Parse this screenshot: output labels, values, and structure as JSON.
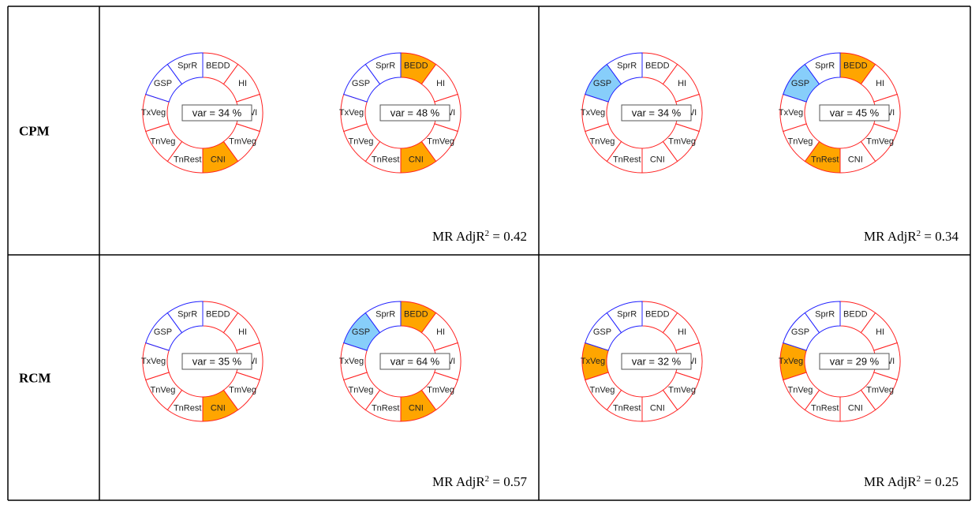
{
  "segments": [
    {
      "label": "BEDD",
      "stroke": "#ff2020"
    },
    {
      "label": "HI",
      "stroke": "#ff2020"
    },
    {
      "label": "WI",
      "stroke": "#ff2020"
    },
    {
      "label": "TmVeg",
      "stroke": "#ff2020"
    },
    {
      "label": "CNI",
      "stroke": "#ff2020"
    },
    {
      "label": "TnRest",
      "stroke": "#ff2020"
    },
    {
      "label": "TnVeg",
      "stroke": "#ff2020"
    },
    {
      "label": "TxVeg",
      "stroke": "#ff2020"
    },
    {
      "label": "GSP",
      "stroke": "#2020ff"
    },
    {
      "label": "SprR",
      "stroke": "#2020ff"
    }
  ],
  "rows": [
    {
      "label": "CPM",
      "cells": [
        {
          "diagrams": [
            {
              "var": "var = 34 %",
              "highlights": [
                {
                  "segment": "CNI",
                  "color": "#ffa500"
                }
              ]
            },
            {
              "var": "var = 48 %",
              "highlights": [
                {
                  "segment": "BEDD",
                  "color": "#ffa500"
                },
                {
                  "segment": "CNI",
                  "color": "#ffa500"
                }
              ]
            }
          ],
          "note": [
            "MR AdjR",
            "2",
            " = 0.42"
          ]
        },
        {
          "diagrams": [
            {
              "var": "var = 34 %",
              "highlights": [
                {
                  "segment": "GSP",
                  "color": "#87cefa"
                }
              ]
            },
            {
              "var": "var = 45 %",
              "highlights": [
                {
                  "segment": "GSP",
                  "color": "#87cefa"
                },
                {
                  "segment": "BEDD",
                  "color": "#ffa500"
                },
                {
                  "segment": "TnRest",
                  "color": "#ffa500"
                }
              ]
            }
          ],
          "note": [
            "MR AdjR",
            "2",
            " = 0.34"
          ]
        }
      ]
    },
    {
      "label": "RCM",
      "cells": [
        {
          "diagrams": [
            {
              "var": "var = 35 %",
              "highlights": [
                {
                  "segment": "CNI",
                  "color": "#ffa500"
                }
              ]
            },
            {
              "var": "var = 64 %",
              "highlights": [
                {
                  "segment": "GSP",
                  "color": "#87cefa"
                },
                {
                  "segment": "BEDD",
                  "color": "#ffa500"
                },
                {
                  "segment": "CNI",
                  "color": "#ffa500"
                }
              ]
            }
          ],
          "note": [
            "MR AdjR",
            "2",
            " = 0.57"
          ]
        },
        {
          "diagrams": [
            {
              "var": "var = 32 %",
              "highlights": [
                {
                  "segment": "TxVeg",
                  "color": "#ffa500"
                }
              ]
            },
            {
              "var": "var = 29 %",
              "highlights": [
                {
                  "segment": "TxVeg",
                  "color": "#ffa500"
                }
              ]
            }
          ],
          "note": [
            "MR AdjR",
            "2",
            " = 0.25"
          ]
        }
      ]
    }
  ]
}
